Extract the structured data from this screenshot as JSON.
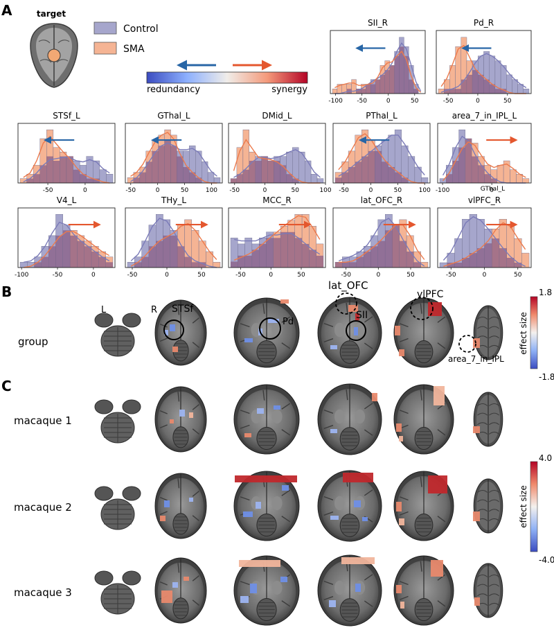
{
  "panels": {
    "a": "A",
    "b": "B",
    "c": "C"
  },
  "target_label": "target",
  "legend": {
    "control": "Control",
    "sma": "SMA"
  },
  "colors": {
    "control_fill": "#a6a6cc",
    "control_line": "#7b7bb8",
    "sma_fill": "#f5b494",
    "sma_line": "#ec7a4c",
    "overlap": "#8a5d86",
    "arrow_red": "#e4572e",
    "arrow_blue": "#2866a6"
  },
  "colorbar": {
    "left_label": "redundancy",
    "right_label": "synergy"
  },
  "chart_data": [
    {
      "type": "bar",
      "title": "SII_R",
      "xticks": [
        "-100",
        "-50",
        "0",
        "50"
      ],
      "xlim": [
        -110,
        70
      ],
      "arrow": "left",
      "control": [
        0,
        0,
        0,
        1,
        0,
        1,
        1,
        2,
        3,
        3,
        4,
        5,
        6,
        9,
        12,
        10,
        6,
        2,
        0
      ],
      "sma": [
        1,
        2,
        2,
        2,
        3,
        1,
        2,
        2,
        2,
        3,
        6,
        7,
        6,
        8,
        10,
        8,
        3,
        1,
        0
      ]
    },
    {
      "type": "bar",
      "title": "Pd_R",
      "xticks": [
        "-50",
        "0",
        "50"
      ],
      "xlim": [
        -70,
        90
      ],
      "arrow": "left",
      "control": [
        0,
        1,
        1,
        1,
        3,
        4,
        7,
        8,
        9,
        8,
        7,
        6,
        4,
        3,
        2,
        1
      ],
      "sma": [
        1,
        3,
        6,
        10,
        12,
        7,
        5,
        4,
        3,
        2,
        1,
        1,
        0,
        0,
        0,
        0
      ]
    },
    {
      "type": "bar",
      "title": "STSf_L",
      "xticks": [
        "-50",
        "0"
      ],
      "xlim": [
        -90,
        40
      ],
      "arrow": "left",
      "control": [
        0,
        1,
        2,
        4,
        6,
        5,
        6,
        6,
        5,
        4,
        6,
        5,
        3,
        2
      ],
      "sma": [
        1,
        2,
        4,
        10,
        12,
        8,
        7,
        6,
        3,
        2,
        1,
        1,
        0,
        0
      ]
    },
    {
      "type": "bar",
      "title": "GThal_L",
      "xticks": [
        "-50",
        "0",
        "50",
        "100"
      ],
      "xlim": [
        -60,
        120
      ],
      "arrow": "left",
      "control": [
        0,
        1,
        2,
        4,
        6,
        7,
        8,
        7,
        6,
        6,
        7,
        6,
        4,
        2,
        1
      ],
      "sma": [
        1,
        2,
        3,
        6,
        8,
        9,
        10,
        9,
        5,
        3,
        2,
        1,
        0,
        0,
        0
      ]
    },
    {
      "type": "bar",
      "title": "DMid_L",
      "xticks": [
        "-50",
        "0",
        "50",
        "100"
      ],
      "xlim": [
        -60,
        100
      ],
      "arrow": "none",
      "control": [
        1,
        2,
        3,
        5,
        6,
        6,
        5,
        6,
        6,
        7,
        8,
        7,
        5,
        2,
        1
      ],
      "sma": [
        1,
        8,
        12,
        7,
        5,
        6,
        5,
        5,
        4,
        2,
        1,
        0,
        0,
        0,
        0
      ]
    },
    {
      "type": "bar",
      "title": "PThal_L",
      "xticks": [
        "-50",
        "0",
        "50",
        "100"
      ],
      "xlim": [
        -70,
        110
      ],
      "arrow": "left",
      "control": [
        1,
        2,
        3,
        4,
        5,
        6,
        7,
        8,
        9,
        10,
        7,
        5,
        3,
        1
      ],
      "sma": [
        2,
        4,
        6,
        9,
        10,
        8,
        6,
        4,
        3,
        2,
        1,
        0,
        0,
        0
      ]
    },
    {
      "type": "bar",
      "title": "area_7_in_IPL_L",
      "subtitle": "GThal_L",
      "xticks": [
        "-100",
        "0"
      ],
      "xlim": [
        -110,
        80
      ],
      "arrow": "right",
      "control": [
        1,
        4,
        8,
        12,
        10,
        6,
        4,
        2,
        1,
        0,
        0,
        0,
        0,
        0
      ],
      "sma": [
        0,
        2,
        5,
        8,
        10,
        9,
        6,
        4,
        3,
        4,
        5,
        3,
        2,
        1
      ]
    },
    {
      "type": "bar",
      "title": "V4_L",
      "xticks": [
        "-100",
        "-50",
        "0"
      ],
      "xlim": [
        -105,
        30
      ],
      "arrow": "right",
      "control": [
        1,
        1,
        2,
        4,
        6,
        10,
        8,
        6,
        5,
        4,
        3,
        2,
        1
      ],
      "sma": [
        0,
        0,
        1,
        2,
        4,
        6,
        7,
        7,
        6,
        5,
        4,
        3,
        2
      ]
    },
    {
      "type": "bar",
      "title": "THy_L",
      "xticks": [
        "-50",
        "0",
        "50"
      ],
      "xlim": [
        -60,
        80
      ],
      "arrow": "right",
      "control": [
        1,
        2,
        5,
        8,
        10,
        9,
        7,
        4,
        2,
        1,
        1,
        0,
        0
      ],
      "sma": [
        0,
        1,
        2,
        4,
        5,
        6,
        6,
        8,
        9,
        7,
        5,
        3,
        1
      ]
    },
    {
      "type": "bar",
      "title": "MCC_R",
      "xticks": [
        "-50",
        "0",
        "50"
      ],
      "xlim": [
        -70,
        90
      ],
      "arrow": "right",
      "control": [
        5,
        4,
        5,
        4,
        5,
        6,
        5,
        6,
        6,
        5,
        4,
        3,
        2
      ],
      "sma": [
        1,
        2,
        2,
        3,
        4,
        5,
        6,
        7,
        8,
        9,
        9,
        7,
        4
      ]
    },
    {
      "type": "bar",
      "title": "lat_OFC_R",
      "xticks": [
        "-50",
        "0",
        "50"
      ],
      "xlim": [
        -70,
        80
      ],
      "arrow": "right",
      "control": [
        1,
        2,
        2,
        3,
        4,
        6,
        9,
        10,
        8,
        5,
        3,
        1,
        0
      ],
      "sma": [
        1,
        1,
        1,
        2,
        3,
        4,
        5,
        7,
        8,
        9,
        6,
        3,
        1
      ]
    },
    {
      "type": "bar",
      "title": "vlPFC_R",
      "xticks": [
        "-50",
        "0",
        "50"
      ],
      "xlim": [
        -70,
        70
      ],
      "arrow": "right",
      "control": [
        1,
        3,
        6,
        10,
        11,
        10,
        8,
        6,
        4,
        2,
        1,
        0
      ],
      "sma": [
        0,
        1,
        1,
        2,
        3,
        4,
        5,
        8,
        10,
        9,
        6,
        3
      ]
    }
  ],
  "section_b": {
    "row_label": "group",
    "left_right": {
      "left": "L",
      "right": "R"
    },
    "annotations": [
      "STSf",
      "Pd",
      "lat_OFC",
      "SII",
      "vlPFC",
      "area_7_in_IPL"
    ],
    "colorbar": {
      "max": "1.8",
      "min": "-1.8",
      "label": "effect size"
    }
  },
  "section_c": {
    "rows": [
      {
        "label": "macaque 1"
      },
      {
        "label": "macaque 2"
      },
      {
        "label": "macaque 3"
      }
    ],
    "colorbar": {
      "max": "4.0",
      "min": "-4.0",
      "label": "effect size"
    }
  }
}
